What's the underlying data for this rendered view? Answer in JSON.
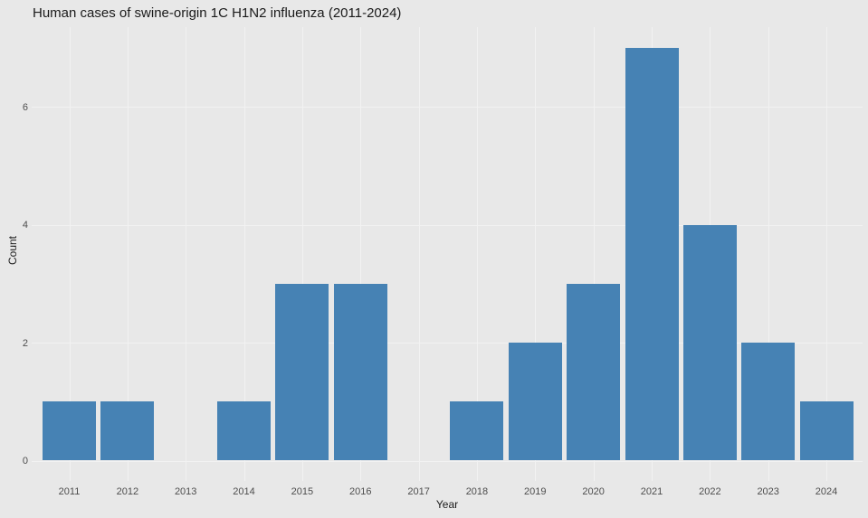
{
  "chart_data": {
    "type": "bar",
    "title": "Human cases of swine-origin 1C H1N2 influenza (2011-2024)",
    "xlabel": "Year",
    "ylabel": "Count",
    "categories": [
      "2011",
      "2012",
      "2013",
      "2014",
      "2015",
      "2016",
      "2017",
      "2018",
      "2019",
      "2020",
      "2021",
      "2022",
      "2023",
      "2024"
    ],
    "values": [
      1,
      1,
      0,
      1,
      3,
      3,
      0,
      1,
      2,
      3,
      7,
      4,
      2,
      1
    ],
    "yticks": [
      0,
      2,
      4,
      6
    ],
    "ylim": [
      0,
      7
    ],
    "grid": true,
    "legend": "none",
    "colors": {
      "bar": "#4682B4",
      "background": "#E8E8E8",
      "gridline": "#F2F2F2",
      "tick_label": "#4d4d4d",
      "text": "#1a1a1a"
    }
  }
}
